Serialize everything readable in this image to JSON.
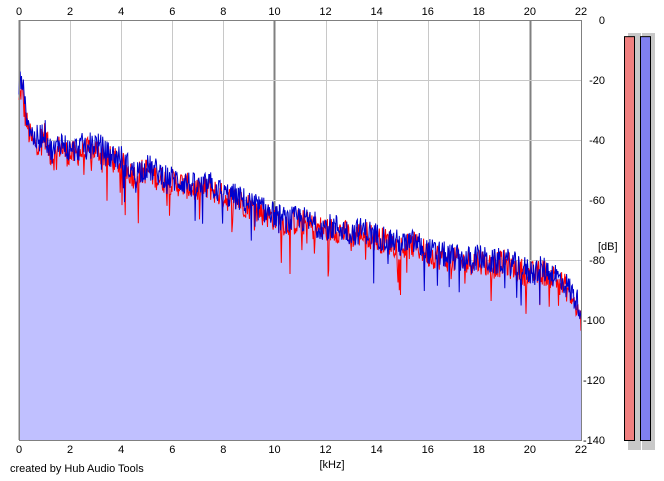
{
  "app": {
    "credit": "created by Hub Audio Tools"
  },
  "colors": {
    "background": "#ffffff",
    "fill": "#c0c0ff",
    "left_channel": "#ff0000",
    "right_channel": "#0000cc",
    "grid_light": "#c8c8c8",
    "grid_major": "#808080",
    "meter_left": "#f08080",
    "meter_right": "#8080f0"
  },
  "meters": {
    "left_level": 0.985,
    "right_level": 0.985
  },
  "chart_data": {
    "type": "area",
    "xlabel": "[kHz]",
    "ylabel": "[dB]",
    "xlim": [
      0,
      22
    ],
    "ylim": [
      -140,
      0
    ],
    "x_ticks": [
      "0",
      "2",
      "4",
      "6",
      "8",
      "10",
      "12",
      "14",
      "16",
      "18",
      "20",
      "22"
    ],
    "y_ticks": [
      "0",
      "-20",
      "-40",
      "-60",
      "-80",
      "-100",
      "-120",
      "-140"
    ],
    "grid": true,
    "series": [
      {
        "channel": "left",
        "color": "#ff0000",
        "x": [
          0,
          0.1,
          0.2,
          0.4,
          0.6,
          0.8,
          1,
          1.2,
          1.4,
          1.6,
          1.8,
          2,
          2.5,
          3,
          3.5,
          4,
          4.5,
          5,
          5.5,
          6,
          6.5,
          7,
          7.5,
          8,
          8.5,
          9,
          9.5,
          10,
          10.5,
          11,
          11.5,
          12,
          12.5,
          13,
          13.5,
          14,
          14.5,
          15,
          15.5,
          16,
          16.5,
          17,
          17.5,
          18,
          18.5,
          19,
          19.5,
          20,
          20.5,
          21,
          21.5,
          22
        ],
        "y": [
          -28,
          -22,
          -30,
          -38,
          -42,
          -40,
          -38,
          -44,
          -46,
          -42,
          -44,
          -45,
          -44,
          -43,
          -46,
          -48,
          -52,
          -50,
          -53,
          -54,
          -55,
          -57,
          -56,
          -59,
          -60,
          -62,
          -64,
          -66,
          -68,
          -67,
          -69,
          -70,
          -70,
          -72,
          -71,
          -73,
          -74,
          -76,
          -75,
          -78,
          -79,
          -80,
          -81,
          -80,
          -82,
          -81,
          -83,
          -85,
          -84,
          -86,
          -90,
          -100
        ]
      },
      {
        "channel": "right",
        "color": "#0000cc",
        "x": [
          0,
          0.1,
          0.2,
          0.4,
          0.6,
          0.8,
          1,
          1.2,
          1.4,
          1.6,
          1.8,
          2,
          2.5,
          3,
          3.5,
          4,
          4.5,
          5,
          5.5,
          6,
          6.5,
          7,
          7.5,
          8,
          8.5,
          9,
          9.5,
          10,
          10.5,
          11,
          11.5,
          12,
          12.5,
          13,
          13.5,
          14,
          14.5,
          15,
          15.5,
          16,
          16.5,
          17,
          17.5,
          18,
          18.5,
          19,
          19.5,
          20,
          20.5,
          21,
          21.5,
          22
        ],
        "y": [
          -24,
          -17,
          -27,
          -35,
          -40,
          -39,
          -37,
          -43,
          -44,
          -40,
          -42,
          -44,
          -42,
          -41,
          -45,
          -46,
          -51,
          -49,
          -51,
          -53,
          -54,
          -56,
          -55,
          -58,
          -59,
          -61,
          -63,
          -65,
          -67,
          -66,
          -68,
          -69,
          -69,
          -71,
          -70,
          -72,
          -73,
          -75,
          -74,
          -77,
          -78,
          -79,
          -80,
          -79,
          -81,
          -80,
          -82,
          -84,
          -83,
          -85,
          -89,
          -96
        ]
      }
    ]
  }
}
